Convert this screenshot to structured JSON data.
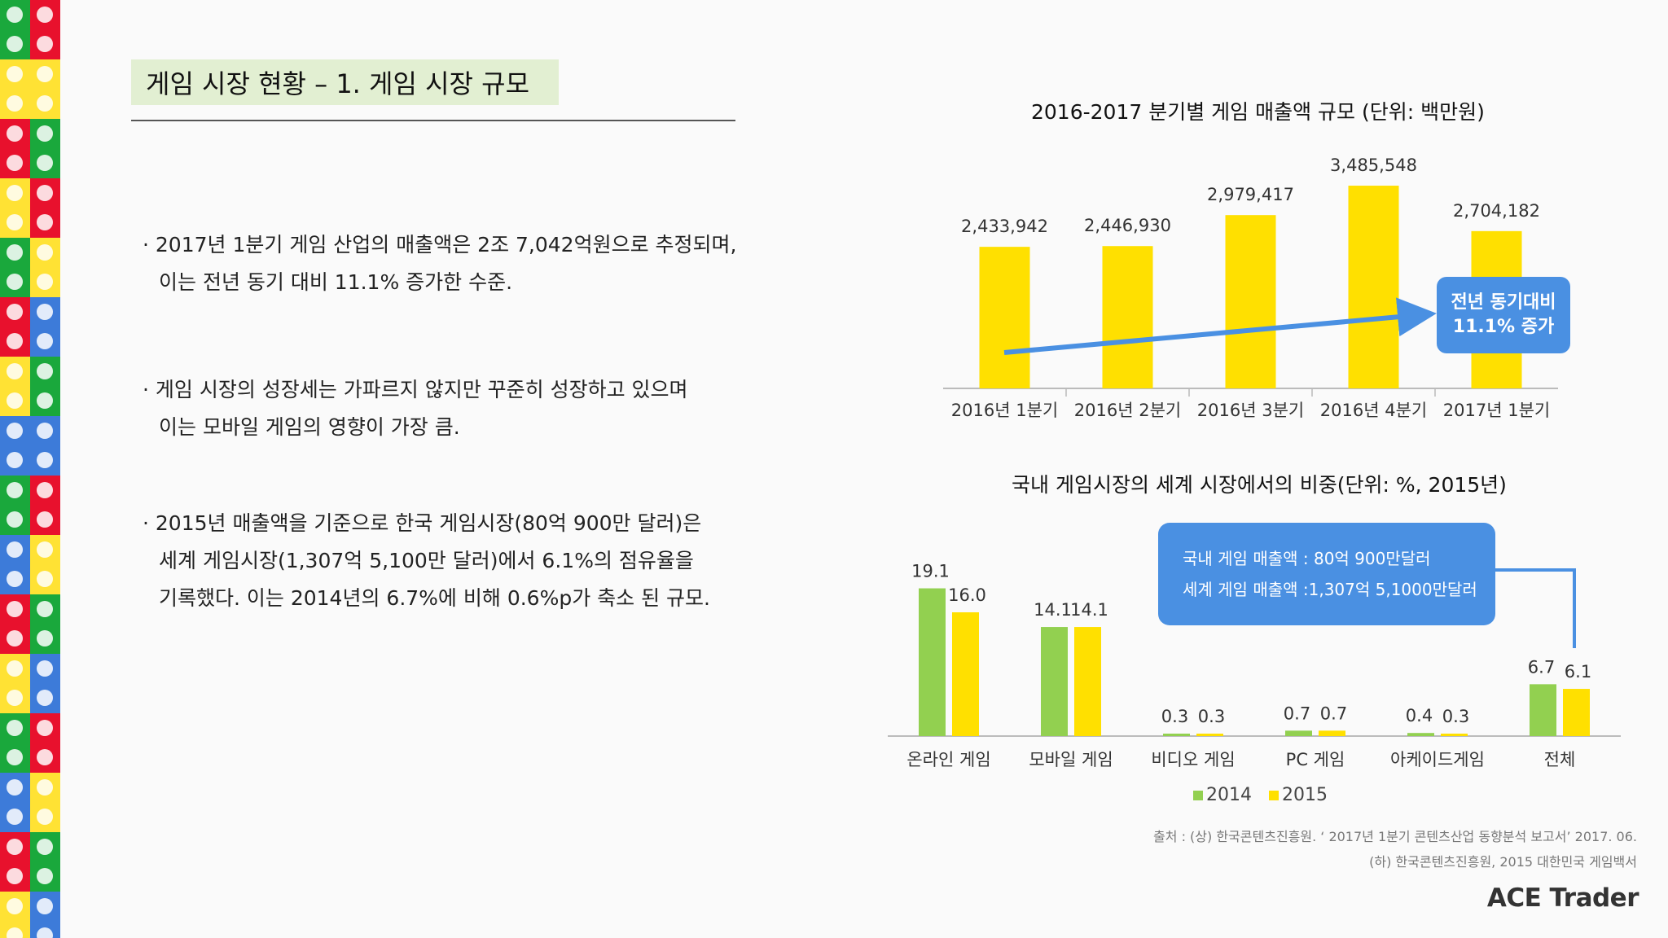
{
  "page": {
    "title": "게임 시장 현황 – 1. 게임 시장 규모",
    "bullets": [
      [
        "2017년 1분기 게임 산업의 매출액은 2조 7,042억원으로 추정되며,",
        "이는 전년 동기 대비 11.1% 증가한 수준."
      ],
      [
        "게임 시장의 성장세는 가파르지 않지만 꾸준히 성장하고 있으며",
        "이는 모바일 게임의 영향이 가장 큼."
      ],
      [
        "2015년 매출액을 기준으로 한국 게임시장(80억 900만 달러)은",
        "세계 게임시장(1,307억 5,100만 달러)에서 6.1%의 점유율을",
        "기록했다. 이는 2014년의 6.7%에 비해 0.6%p가 축소 된 규모."
      ]
    ],
    "callout_growth": [
      "전년 동기대비",
      "11.1% 증가"
    ],
    "callout_market": [
      "국내 게임 매출액 : 80억 900만달러",
      "세계 게임 매출액 :1,307억 5,1000만달러"
    ],
    "source": [
      "출처 : (상) 한국콘텐츠진흥원. ‘ 2017년 1분기 콘텐츠산업 동향분석 보고서’ 2017. 06.",
      "(하) 한국콘텐츠진흥원, 2015 대한민국 게임백서"
    ],
    "logo": "ACE Trader"
  },
  "colors": {
    "yellow": "#ffe000",
    "green": "#92d050",
    "blue": "#4a90e2",
    "title_bg": "#e2efd2",
    "lego_red": "#e8112d",
    "lego_green": "#1aa83c",
    "lego_yellow": "#ffe234",
    "lego_blue": "#3d7bd9"
  },
  "chart_data": [
    {
      "type": "bar",
      "title": "2016-2017 분기별 게임 매출액 규모 (단위: 백만원)",
      "categories": [
        "2016년 1분기",
        "2016년 2분기",
        "2016년 3분기",
        "2016년 4분기",
        "2017년 1분기"
      ],
      "values": [
        2433942,
        2446930,
        2979417,
        3485548,
        2704182
      ],
      "value_labels": [
        "2,433,942",
        "2,446,930",
        "2,979,417",
        "3,485,548",
        "2,704,182"
      ],
      "ylim": [
        0,
        3500000
      ],
      "color": "#ffe000",
      "grid": false,
      "legend": "none"
    },
    {
      "type": "bar",
      "title": "국내 게임시장의 세계 시장에서의 비중(단위: %, 2015년)",
      "categories": [
        "온라인 게임",
        "모바일 게임",
        "비디오 게임",
        "PC 게임",
        "아케이드게임",
        "전체"
      ],
      "series": [
        {
          "name": "2014",
          "values": [
            19.1,
            14.1,
            0.3,
            0.7,
            0.4,
            6.7
          ],
          "labels": [
            "19.1",
            "14.1",
            "0.3",
            "0.7",
            "0.4",
            "6.7"
          ],
          "color": "#92d050"
        },
        {
          "name": "2015",
          "values": [
            16.0,
            14.1,
            0.3,
            0.7,
            0.3,
            6.1
          ],
          "labels": [
            "16.0",
            "14.1",
            "0.3",
            "0.7",
            "0.3",
            "6.1"
          ],
          "color": "#ffe000"
        }
      ],
      "ylim": [
        0,
        20
      ],
      "grid": false,
      "legend": "bottom-center"
    }
  ]
}
